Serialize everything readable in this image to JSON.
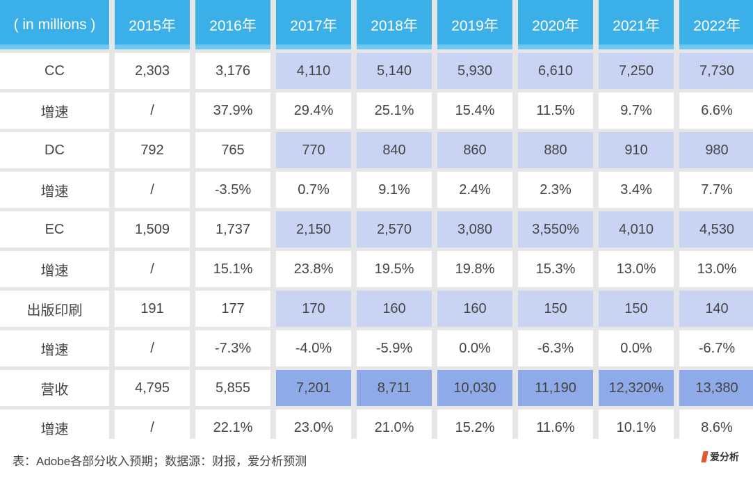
{
  "table": {
    "header": [
      "( in millions )",
      "2015年",
      "2016年",
      "2017年",
      "2018年",
      "2019年",
      "2020年",
      "2021年",
      "2022年"
    ],
    "rows": [
      {
        "label": "CC",
        "values": [
          "2,303",
          "3,176",
          "4,110",
          "5,140",
          "5,930",
          "6,610",
          "7,250",
          "7,730"
        ]
      },
      {
        "label": "增速",
        "values": [
          "/",
          "37.9%",
          "29.4%",
          "25.1%",
          "15.4%",
          "11.5%",
          "9.7%",
          "6.6%"
        ]
      },
      {
        "label": "DC",
        "values": [
          "792",
          "765",
          "770",
          "840",
          "860",
          "880",
          "910",
          "980"
        ]
      },
      {
        "label": "增速",
        "values": [
          "/",
          "-3.5%",
          "0.7%",
          "9.1%",
          "2.4%",
          "2.3%",
          "3.4%",
          "7.7%"
        ]
      },
      {
        "label": "EC",
        "values": [
          "1,509",
          "1,737",
          "2,150",
          "2,570",
          "3,080",
          "3,550%",
          "4,010",
          "4,530"
        ]
      },
      {
        "label": "增速",
        "values": [
          "/",
          "15.1%",
          "23.8%",
          "19.5%",
          "19.8%",
          "15.3%",
          "13.0%",
          "13.0%"
        ]
      },
      {
        "label": "出版印刷",
        "values": [
          "191",
          "177",
          "170",
          "160",
          "160",
          "150",
          "150",
          "140"
        ]
      },
      {
        "label": "增速",
        "values": [
          "/",
          "-7.3%",
          "-4.0%",
          "-5.9%",
          "0.0%",
          "-6.3%",
          "0.0%",
          "-6.7%"
        ]
      },
      {
        "label": "营收",
        "values": [
          "4,795",
          "5,855",
          "7,201",
          "8,711",
          "10,030",
          "11,190",
          "12,320%",
          "13,380"
        ]
      },
      {
        "label": "增速",
        "values": [
          "/",
          "22.1%",
          "23.0%",
          "21.0%",
          "15.2%",
          "11.6%",
          "10.1%",
          "8.6%"
        ]
      }
    ]
  },
  "caption": "表：Adobe各部分收入预期；数据源：财报，爱分析预测",
  "logo": {
    "text": "爱分析"
  },
  "colors": {
    "header_bg": "#3bb0e8",
    "cell_bg": "#ffffff",
    "forecast_light": "#c9d4f5",
    "forecast_dark": "#8eaae8",
    "page_bg": "#e6e6e6"
  }
}
